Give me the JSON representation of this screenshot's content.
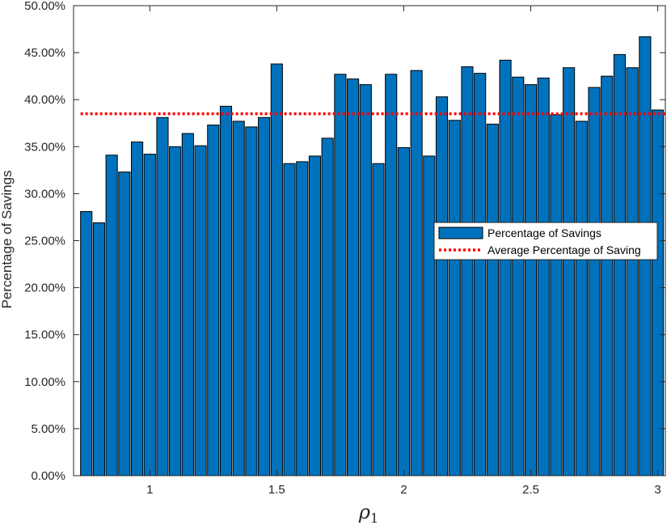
{
  "chart_data": {
    "type": "bar",
    "x": [
      0.75,
      0.8,
      0.85,
      0.9,
      0.95,
      1.0,
      1.05,
      1.1,
      1.15,
      1.2,
      1.25,
      1.3,
      1.35,
      1.4,
      1.45,
      1.5,
      1.55,
      1.6,
      1.65,
      1.7,
      1.75,
      1.8,
      1.85,
      1.9,
      1.95,
      2.0,
      2.05,
      2.1,
      2.15,
      2.2,
      2.25,
      2.3,
      2.35,
      2.4,
      2.45,
      2.5,
      2.55,
      2.6,
      2.65,
      2.7,
      2.75,
      2.8,
      2.85,
      2.9,
      2.95,
      3.0
    ],
    "series": [
      {
        "name": "Percentage of Savings",
        "color": "#0072bd",
        "values": [
          28.1,
          26.9,
          34.1,
          32.3,
          35.5,
          34.2,
          38.1,
          35.0,
          36.4,
          35.1,
          37.3,
          39.3,
          37.7,
          37.1,
          38.1,
          43.8,
          33.2,
          33.4,
          34.0,
          35.9,
          42.7,
          42.2,
          41.6,
          33.2,
          42.7,
          34.9,
          43.1,
          34.0,
          40.3,
          37.8,
          43.5,
          42.8,
          37.4,
          44.2,
          42.4,
          41.6,
          42.3,
          38.4,
          43.4,
          37.7,
          41.3,
          42.5,
          44.8,
          43.4,
          46.7,
          38.9
        ]
      }
    ],
    "reference_line": {
      "name": "Average Percentage of Saving",
      "value": 38.5,
      "color": "#ff0000",
      "style": "dotted"
    },
    "xlabel": "ρ1",
    "ylabel": "Percentage of Savings",
    "xlim": [
      0.7,
      3.03
    ],
    "ylim": [
      0,
      50
    ],
    "xticks": [
      1,
      1.5,
      2,
      2.5,
      3
    ],
    "xtick_labels": [
      "1",
      "1.5",
      "2",
      "2.5",
      "3"
    ],
    "yticks": [
      0,
      5,
      10,
      15,
      20,
      25,
      30,
      35,
      40,
      45,
      50
    ],
    "ytick_labels": [
      "0.00%",
      "5.00%",
      "10.00%",
      "15.00%",
      "20.00%",
      "25.00%",
      "30.00%",
      "35.00%",
      "40.00%",
      "45.00%",
      "50.00%"
    ],
    "grid": false,
    "legend_position": "right"
  }
}
